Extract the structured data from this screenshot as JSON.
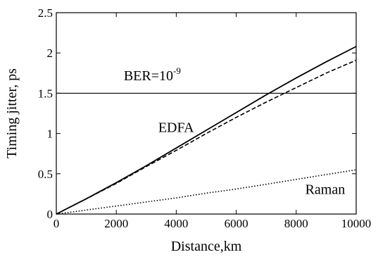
{
  "chart_data": {
    "type": "line",
    "title": "",
    "xlabel": "Distance,km",
    "ylabel": "Timing jitter, ps",
    "xlim": [
      0,
      10000
    ],
    "ylim": [
      0,
      2.5
    ],
    "x_ticks": [
      "0",
      "2000",
      "4000",
      "6000",
      "8000",
      "10000"
    ],
    "y_ticks": [
      "0",
      "0.5",
      "1",
      "1.5",
      "2",
      "2.5"
    ],
    "grid": false,
    "series": [
      {
        "style": "solid",
        "x": [
          0,
          1000,
          2000,
          3000,
          4000,
          5000,
          6000,
          7000,
          8000,
          9000,
          10000
        ],
        "y": [
          0,
          0.19,
          0.39,
          0.6,
          0.82,
          1.04,
          1.26,
          1.48,
          1.69,
          1.89,
          2.08
        ]
      },
      {
        "style": "dashed",
        "x": [
          0,
          1000,
          2000,
          3000,
          4000,
          5000,
          6000,
          7000,
          8000,
          9000,
          10000
        ],
        "y": [
          0,
          0.19,
          0.38,
          0.59,
          0.79,
          1.0,
          1.2,
          1.39,
          1.57,
          1.75,
          1.91
        ]
      },
      {
        "style": "dotted",
        "x": [
          0,
          1000,
          2000,
          3000,
          4000,
          5000,
          6000,
          7000,
          8000,
          9000,
          10000
        ],
        "y": [
          0,
          0.05,
          0.1,
          0.15,
          0.2,
          0.26,
          0.31,
          0.37,
          0.43,
          0.49,
          0.55
        ]
      }
    ],
    "reference_line": {
      "y": 1.5,
      "label_base": "BER=10",
      "label_exp": "-9"
    },
    "annotations": [
      {
        "text": "EDFA",
        "x": 3400,
        "y": 1.02
      },
      {
        "text": "Raman",
        "x": 8300,
        "y": 0.25
      }
    ],
    "ber_label_pos": {
      "x": 2250,
      "y": 1.66
    }
  }
}
